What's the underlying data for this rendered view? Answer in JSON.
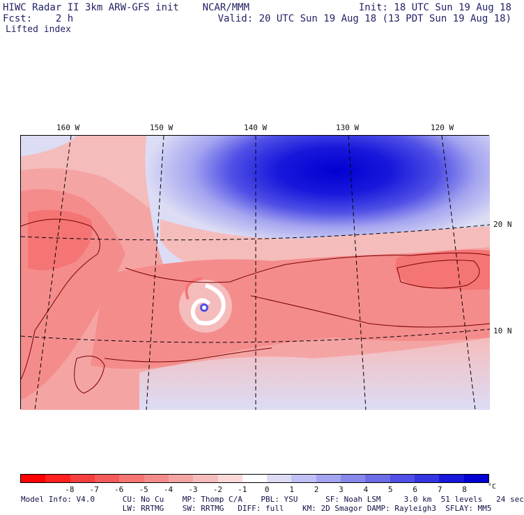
{
  "header": {
    "title_left": "HIWC Radar II 3km ARW-GFS init    NCAR/MMM",
    "init_right": "Init: 18 UTC Sun 19 Aug 18",
    "fcst_label": "Fcst:    2 h",
    "valid_right": "Valid: 20 UTC Sun 19 Aug 18 (13 PDT Sun 19 Aug 18)",
    "field_name": "Lifted index"
  },
  "map": {
    "lon_labels": [
      "160 W",
      "150 W",
      "140 W",
      "130 W",
      "120 W"
    ],
    "lat_labels": [
      "20 N",
      "10 N"
    ]
  },
  "colorbar": {
    "colors": [
      "#ff0000",
      "#ff2020",
      "#f53f3f",
      "#f55a5a",
      "#f57474",
      "#f58c8c",
      "#f5a4a4",
      "#f5bcbc",
      "#fad8d8",
      "#ffffff",
      "#dcdcf5",
      "#c0c0f5",
      "#a4a4f0",
      "#8888eb",
      "#6c6ce6",
      "#5050e6",
      "#3434e1",
      "#1818dc",
      "#0000d2"
    ],
    "ticks": [
      "-8",
      "-7",
      "-6",
      "-5",
      "-4",
      "-3",
      "-2",
      "-1",
      "0",
      "1",
      "2",
      "3",
      "4",
      "5",
      "6",
      "7",
      "8"
    ],
    "unit": "°C"
  },
  "footer": {
    "line1": "Model Info: V4.0      CU: No Cu    MP: Thomp C/A    PBL: YSU      SF: Noah LSM     3.0 km  51 levels   24 sec",
    "line2": "                      LW: RRTMG    SW: RRTMG   DIFF: full    KM: 2D Smagor DAMP: Rayleigh3  SFLAY: MM5"
  }
}
